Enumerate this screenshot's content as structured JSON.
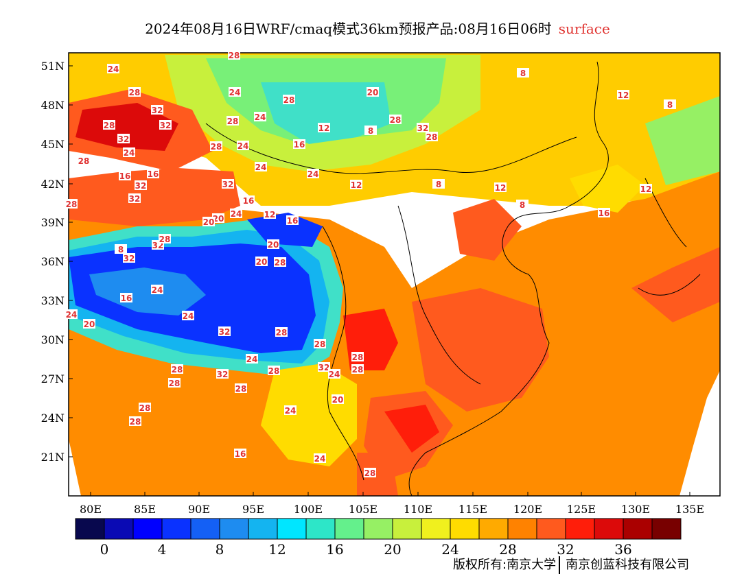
{
  "title": {
    "main": "2024年08月16日WRF/cmaq模式36km预报产品:08月16日06时",
    "variable": "surface"
  },
  "axes": {
    "lat_labels": [
      "51N",
      "48N",
      "45N",
      "42N",
      "39N",
      "36N",
      "33N",
      "30N",
      "27N",
      "24N",
      "21N"
    ],
    "lon_labels": [
      "80E",
      "85E",
      "90E",
      "95E",
      "100E",
      "105E",
      "110E",
      "115E",
      "120E",
      "125E",
      "130E",
      "135E"
    ]
  },
  "legend": {
    "colors": [
      "#08084e",
      "#0a0ab4",
      "#0000ff",
      "#0a32ff",
      "#1460f5",
      "#1e8cf0",
      "#14b4f0",
      "#00e6ff",
      "#2de6c8",
      "#64f08c",
      "#96f064",
      "#c8f03c",
      "#f0f01e",
      "#ffdc00",
      "#ffaa00",
      "#ff8200",
      "#ff5a1e",
      "#ff1e0a",
      "#dc0a0a",
      "#aa0000",
      "#780000"
    ],
    "labels": [
      "0",
      "4",
      "8",
      "12",
      "16",
      "20",
      "24",
      "28",
      "32",
      "36"
    ]
  },
  "contour_labels": [
    "24",
    "28",
    "32",
    "28",
    "32",
    "32",
    "28",
    "24",
    "32",
    "16",
    "16",
    "32",
    "32",
    "24",
    "20",
    "20",
    "24",
    "28",
    "24",
    "16",
    "12",
    "16",
    "20",
    "20",
    "28",
    "24",
    "28",
    "24",
    "28",
    "24",
    "28",
    "12",
    "8",
    "16",
    "20",
    "28",
    "32",
    "28",
    "12",
    "8",
    "12",
    "8",
    "16",
    "12",
    "12",
    "8",
    "8",
    "8",
    "32",
    "28",
    "32",
    "28",
    "24",
    "20",
    "16",
    "24",
    "24",
    "32",
    "28",
    "28",
    "28",
    "28",
    "32",
    "24",
    "28",
    "24",
    "32",
    "28",
    "28",
    "28",
    "28",
    "28",
    "20",
    "24",
    "16",
    "24",
    "28"
  ],
  "copyright": {
    "left": "版权所有:南京大学",
    "right": "南京创蓝科技有限公司"
  }
}
